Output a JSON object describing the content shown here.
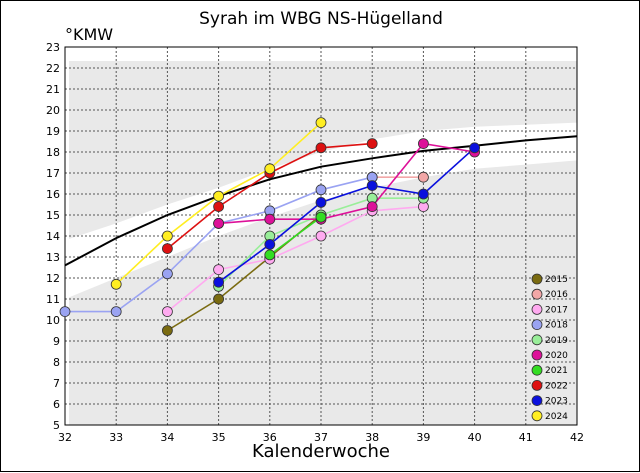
{
  "chart_data": {
    "type": "line",
    "title": "Syrah im WBG NS-Hügelland",
    "ylabel": "°KMW",
    "xlabel": "Kalenderwoche",
    "xlim": [
      32,
      42
    ],
    "ylim": [
      5,
      23
    ],
    "x_ticks": [
      32,
      33,
      34,
      35,
      36,
      37,
      38,
      39,
      40,
      41,
      42
    ],
    "y_ticks": [
      5,
      6,
      7,
      8,
      9,
      10,
      11,
      12,
      13,
      14,
      15,
      16,
      17,
      18,
      19,
      20,
      21,
      22,
      23
    ],
    "grid": true,
    "legend_position": "bottom-right",
    "reference_curve": {
      "x": [
        32,
        33,
        34,
        35,
        36,
        37,
        38,
        39,
        40,
        41,
        42
      ],
      "y": [
        12.6,
        13.9,
        15.0,
        15.9,
        16.7,
        17.3,
        17.7,
        18.05,
        18.3,
        18.55,
        18.75
      ],
      "color": "#000000"
    },
    "band": {
      "x": [
        32,
        33,
        34,
        35,
        36,
        37,
        38,
        39,
        40,
        41,
        42
      ],
      "upper": [
        13.8,
        14.6,
        15.5,
        16.3,
        17.2,
        18.0,
        18.6,
        19.0,
        19.2,
        19.3,
        19.4
      ],
      "lower": [
        11.0,
        12.0,
        13.0,
        14.0,
        14.9,
        15.7,
        16.3,
        16.8,
        17.2,
        17.4,
        17.6
      ]
    },
    "series": [
      {
        "name": "2015",
        "color": "#7a6b10",
        "x": [
          34,
          35,
          36,
          37
        ],
        "y": [
          9.5,
          11.0,
          13.0,
          15.0
        ]
      },
      {
        "name": "2016",
        "color": "#f2a7a7",
        "x": [
          38,
          39
        ],
        "y": [
          16.8,
          16.8
        ]
      },
      {
        "name": "2017",
        "color": "#ffaaf0",
        "x": [
          34,
          35,
          36,
          37,
          38,
          39
        ],
        "y": [
          10.4,
          12.4,
          12.9,
          14.0,
          15.2,
          15.4
        ]
      },
      {
        "name": "2018",
        "color": "#9aa3f2",
        "x": [
          32,
          33,
          34,
          35,
          36,
          37,
          38
        ],
        "y": [
          10.4,
          10.4,
          12.2,
          14.6,
          15.2,
          16.2,
          16.8
        ]
      },
      {
        "name": "2019",
        "color": "#99ee99",
        "x": [
          35,
          36,
          37,
          38,
          39
        ],
        "y": [
          11.6,
          14.0,
          15.0,
          15.8,
          15.8
        ]
      },
      {
        "name": "2020",
        "color": "#dd1199",
        "x": [
          35,
          36,
          37,
          38,
          39,
          40
        ],
        "y": [
          14.6,
          14.8,
          14.8,
          15.4,
          18.4,
          18.0
        ]
      },
      {
        "name": "2021",
        "color": "#33dd22",
        "x": [
          36,
          37
        ],
        "y": [
          13.1,
          14.9
        ]
      },
      {
        "name": "2022",
        "color": "#dd1111",
        "x": [
          34,
          35,
          36,
          37,
          38
        ],
        "y": [
          13.4,
          15.4,
          17.0,
          18.2,
          18.4
        ]
      },
      {
        "name": "2023",
        "color": "#0a10dd",
        "x": [
          35,
          36,
          37,
          38,
          39,
          40
        ],
        "y": [
          11.8,
          13.6,
          15.6,
          16.4,
          16.0,
          18.2
        ]
      },
      {
        "name": "2024",
        "color": "#ffee22",
        "x": [
          33,
          34,
          35,
          36,
          37
        ],
        "y": [
          11.7,
          14.0,
          15.9,
          17.2,
          19.4
        ]
      }
    ]
  }
}
